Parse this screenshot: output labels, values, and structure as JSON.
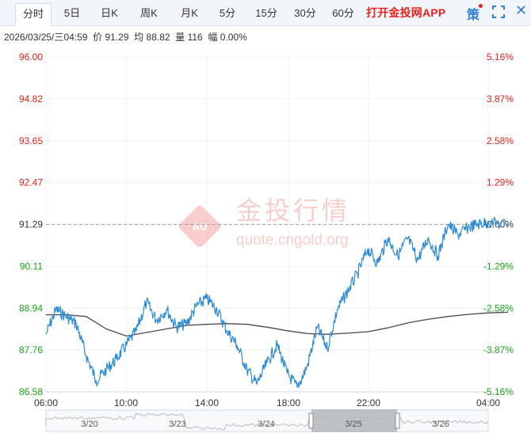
{
  "tabs": [
    {
      "label": "分时",
      "active": true
    },
    {
      "label": "5日"
    },
    {
      "label": "日K"
    },
    {
      "label": "周K"
    },
    {
      "label": "月K"
    },
    {
      "label": "5分"
    },
    {
      "label": "15分"
    },
    {
      "label": "30分"
    },
    {
      "label": "60分"
    }
  ],
  "toolbar": {
    "app_label": "打开金投网APP",
    "strategy_label": "策",
    "close_symbol": "✕"
  },
  "info": {
    "datetime": "2026/03/25/三04:59",
    "price_label": "价",
    "price": "91.29",
    "avg_label": "均",
    "avg": "88.82",
    "volume_label": "量",
    "volume": "116",
    "change_label": "幅",
    "change": "0.00%"
  },
  "watermark": {
    "badge": "AU",
    "name": "金投行情",
    "url": "quote.cngold.org"
  },
  "colors": {
    "price_line": "#2b8ad6",
    "avg_line": "#4a4a4a",
    "up": "#e8211c",
    "down": "#17a317",
    "neutral": "#333333",
    "grid": "#eef1f4"
  },
  "navigator": {
    "dates": [
      "3/20",
      "3/23",
      "3/24",
      "3/25",
      "3/26"
    ],
    "selected": "3/25"
  },
  "chart_data": {
    "type": "line",
    "reference_price": 91.29,
    "ylim": [
      86.58,
      96.0
    ],
    "y_ticks_left": [
      "96.00",
      "94.82",
      "93.65",
      "92.47",
      "91.29",
      "90.11",
      "88.94",
      "87.76",
      "86.58"
    ],
    "y_ticks_right": [
      "5.16%",
      "3.87%",
      "2.58%",
      "1.29%",
      "0.00%",
      "-1.29%",
      "-2.58%",
      "-3.87%",
      "-5.16%"
    ],
    "x_ticks": [
      "06:00",
      "10:00",
      "14:00",
      "18:00",
      "22:00",
      "04:00"
    ],
    "series": [
      {
        "name": "价",
        "x": [
          "06:00",
          "06:30",
          "07:00",
          "07:30",
          "08:00",
          "08:30",
          "09:00",
          "09:30",
          "10:00",
          "10:30",
          "11:00",
          "11:30",
          "12:00",
          "12:30",
          "13:00",
          "13:30",
          "14:00",
          "14:30",
          "15:00",
          "15:30",
          "16:00",
          "16:30",
          "17:00",
          "17:30",
          "18:00",
          "18:30",
          "19:00",
          "19:30",
          "20:00",
          "20:30",
          "21:00",
          "21:30",
          "22:00",
          "22:30",
          "23:00",
          "23:30",
          "00:00",
          "00:30",
          "01:00",
          "01:30",
          "02:00",
          "02:30",
          "03:00",
          "03:30",
          "04:00",
          "04:59"
        ],
        "values": [
          88.2,
          88.9,
          88.7,
          88.5,
          87.6,
          86.9,
          87.2,
          87.5,
          87.9,
          88.3,
          89.1,
          88.6,
          88.9,
          88.4,
          88.5,
          89.0,
          89.2,
          88.9,
          88.3,
          87.9,
          87.2,
          86.8,
          87.4,
          87.9,
          87.1,
          86.7,
          87.3,
          88.4,
          87.8,
          88.9,
          89.4,
          89.9,
          90.6,
          90.2,
          90.9,
          90.4,
          90.9,
          90.3,
          90.9,
          90.4,
          91.3,
          91.0,
          91.2,
          91.3,
          91.35,
          91.29
        ]
      },
      {
        "name": "均",
        "x": [
          "06:00",
          "07:00",
          "08:00",
          "09:00",
          "10:00",
          "11:00",
          "12:00",
          "13:00",
          "14:00",
          "15:00",
          "16:00",
          "17:00",
          "18:00",
          "19:00",
          "20:00",
          "21:00",
          "22:00",
          "23:00",
          "00:00",
          "01:00",
          "02:00",
          "03:00",
          "04:00",
          "04:59"
        ],
        "values": [
          88.75,
          88.75,
          88.7,
          88.35,
          88.15,
          88.25,
          88.35,
          88.45,
          88.48,
          88.5,
          88.48,
          88.4,
          88.3,
          88.22,
          88.2,
          88.23,
          88.27,
          88.38,
          88.52,
          88.62,
          88.7,
          88.76,
          88.8,
          88.82
        ]
      }
    ]
  }
}
